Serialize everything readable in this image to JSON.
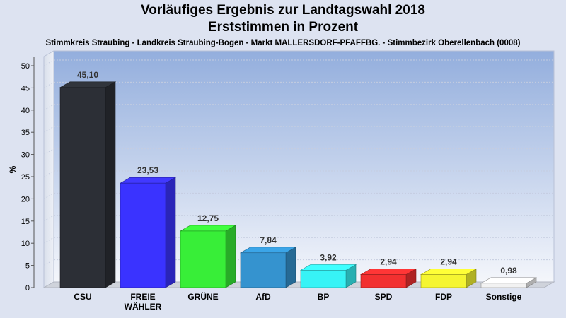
{
  "header": {
    "title_line1": "Vorläufiges Ergebnis zur Landtagswahl 2018",
    "title_line2": "Erststimmen in Prozent",
    "subtitle": "Stimmkreis Straubing - Landkreis Straubing-Bogen - Markt MALLERSDORF-PFAFFBG. - Stimmbezirk Oberellenbach (0008)"
  },
  "chart_data": {
    "type": "bar",
    "title": "Vorläufiges Ergebnis zur Landtagswahl 2018 / Erststimmen in Prozent",
    "ylabel": "%",
    "xlabel": "",
    "ylim": [
      0,
      50
    ],
    "yticks": [
      0,
      5,
      10,
      15,
      20,
      25,
      30,
      35,
      40,
      45,
      50
    ],
    "grid": true,
    "categories": [
      {
        "label": [
          "CSU"
        ],
        "value": 45.1,
        "value_label": "45,10",
        "color": "#2c2f36"
      },
      {
        "label": [
          "FREIE",
          "WÄHLER"
        ],
        "value": 23.53,
        "value_label": "23,53",
        "color": "#3a33ff"
      },
      {
        "label": [
          "GRÜNE"
        ],
        "value": 12.75,
        "value_label": "12,75",
        "color": "#38ee38"
      },
      {
        "label": [
          "AfD"
        ],
        "value": 7.84,
        "value_label": "7,84",
        "color": "#3593cf"
      },
      {
        "label": [
          "BP"
        ],
        "value": 3.92,
        "value_label": "3,92",
        "color": "#37f3f6"
      },
      {
        "label": [
          "SPD"
        ],
        "value": 2.94,
        "value_label": "2,94",
        "color": "#f23030"
      },
      {
        "label": [
          "FDP"
        ],
        "value": 2.94,
        "value_label": "2,94",
        "color": "#f5f531"
      },
      {
        "label": [
          "Sonstige"
        ],
        "value": 0.98,
        "value_label": "0,98",
        "color": "#f2f2f2"
      }
    ]
  }
}
